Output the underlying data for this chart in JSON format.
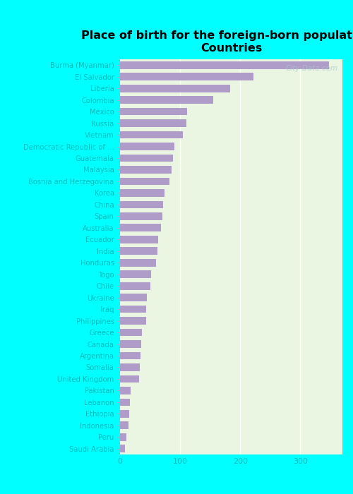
{
  "title": "Place of birth for the foreign-born population -\nCountries",
  "categories": [
    "Burma (Myanmar)",
    "El Salvador",
    "Liberia",
    "Colombia",
    "Mexico",
    "Russia",
    "Vietnam",
    "Democratic Republic of ...",
    "Guatemala",
    "Malaysia",
    "Bosnia and Herzegovina",
    "Korea",
    "China",
    "Spain",
    "Australia",
    "Ecuador",
    "India",
    "Honduras",
    "Togo",
    "Chile",
    "Ukraine",
    "Iraq",
    "Philippines",
    "Greece",
    "Canada",
    "Argentina",
    "Somalia",
    "United Kingdom",
    "Pakistan",
    "Lebanon",
    "Ethiopia",
    "Indonesia",
    "Peru",
    "Saudi Arabia"
  ],
  "values": [
    348,
    222,
    183,
    155,
    112,
    110,
    105,
    90,
    88,
    86,
    82,
    74,
    72,
    70,
    68,
    63,
    62,
    60,
    52,
    50,
    45,
    44,
    43,
    36,
    35,
    34,
    33,
    32,
    18,
    17,
    15,
    14,
    10,
    8
  ],
  "bar_color": "#b09cc8",
  "background_color_plot": "#eaf5e2",
  "background_color_fig": "#00ffff",
  "title_color": "#000000",
  "label_color": "#00bbbb",
  "tick_color": "#00bbbb",
  "xlim": [
    0,
    370
  ],
  "xticks": [
    0,
    100,
    200,
    300
  ],
  "watermark": "City-Data.com"
}
